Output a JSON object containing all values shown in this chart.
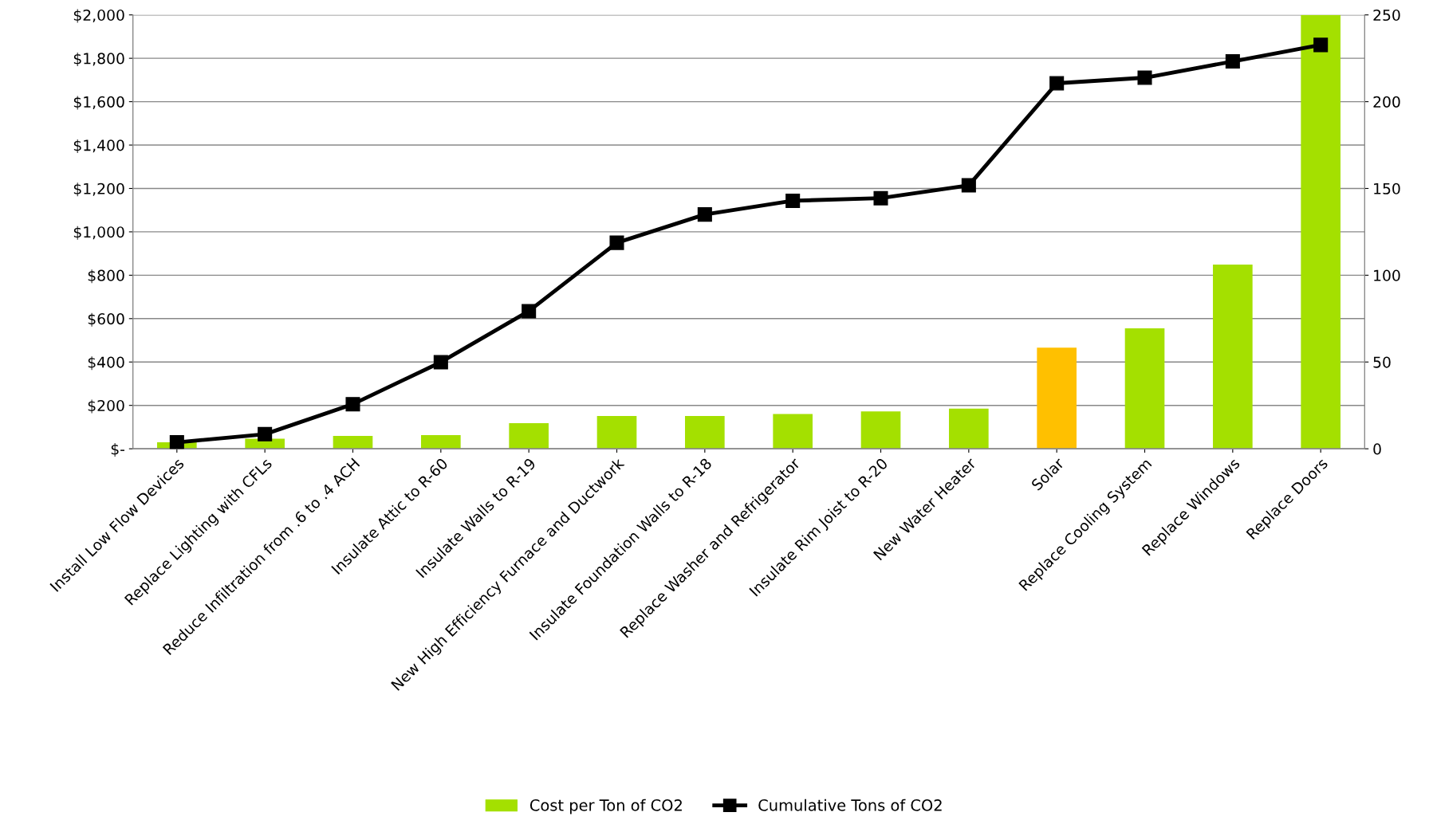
{
  "chart_data": {
    "type": "bar",
    "categories": [
      "Install Low Flow Devices",
      "Replace Lighting with CFLs",
      "Reduce Infiltration from .6 to .4 ACH",
      "Insulate Attic to R-60",
      "Insulate Walls to R-19",
      "New High Efficiency Furnace and Ductwork",
      "Insulate Foundation Walls to R-18",
      "Replace Washer and Refrigerator",
      "Insulate Rim Joist to R-20",
      "New Water Heater",
      "Solar",
      "Replace Cooling System",
      "Replace Windows",
      "Replace Doors"
    ],
    "series": [
      {
        "name": "Cost per Ton of CO2",
        "color": "#a4e000",
        "colors": [
          "#a4e000",
          "#a4e000",
          "#a4e000",
          "#a4e000",
          "#a4e000",
          "#a4e000",
          "#a4e000",
          "#a4e000",
          "#a4e000",
          "#a4e000",
          "#ffc000",
          "#a4e000",
          "#a4e000",
          "#a4e000"
        ],
        "values": [
          30,
          46,
          59,
          63,
          118,
          151,
          151,
          160,
          172,
          185,
          466,
          555,
          849,
          2000
        ]
      },
      {
        "name": "Cumulative Tons of CO2",
        "type": "line",
        "axis": "y2",
        "color": "#000000",
        "marker": "square",
        "line_style": "solid",
        "values": [
          3.7,
          8.4,
          25.7,
          49.9,
          79.3,
          118.7,
          135,
          142.9,
          144.4,
          151.8,
          210.6,
          213.8,
          223.2,
          232.7
        ]
      }
    ],
    "ylim": [
      0,
      2000
    ],
    "yticks": [
      {
        "value": 0,
        "label": "$-"
      },
      {
        "value": 200,
        "label": "$200"
      },
      {
        "value": 400,
        "label": "$400"
      },
      {
        "value": 600,
        "label": "$600"
      },
      {
        "value": 800,
        "label": "$800"
      },
      {
        "value": 1000,
        "label": "$1,000"
      },
      {
        "value": 1200,
        "label": "$1,200"
      },
      {
        "value": 1400,
        "label": "$1,400"
      },
      {
        "value": 1600,
        "label": "$1,600"
      },
      {
        "value": 1800,
        "label": "$1,800"
      },
      {
        "value": 2000,
        "label": "$2,000"
      }
    ],
    "y2lim": [
      0,
      250
    ],
    "y2ticks": [
      0,
      50,
      100,
      150,
      200,
      250
    ],
    "grid": "y",
    "legend": "bottom"
  }
}
